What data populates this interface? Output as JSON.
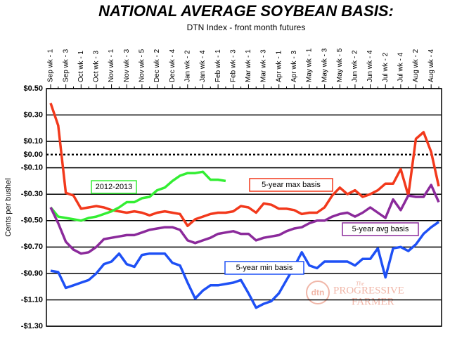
{
  "chart_data": {
    "type": "line",
    "title": "NATIONAL AVERAGE SOYBEAN BASIS:",
    "subtitle": "DTN Index - front month futures",
    "y_label": "Cents per bushel",
    "categories": [
      "Sep wk - 1",
      null,
      "Sep wk - 3",
      null,
      "Oct wk - 1",
      null,
      "Oct wk - 3",
      null,
      "Nov wk - 1",
      null,
      "Nov wk - 3",
      null,
      "Nov wk - 5",
      null,
      "Dec wk - 2",
      null,
      "Dec wk - 4",
      null,
      "Jan wk - 2",
      null,
      "Jan wk - 4",
      null,
      "Feb wk - 1",
      null,
      "Feb wk - 3",
      null,
      "Mar wk - 1",
      null,
      "Mar wk - 3",
      null,
      "Apr wk - 1",
      null,
      "Apr wk - 3",
      null,
      "May wk - 1",
      null,
      "May wk - 3",
      null,
      "May wk - 5",
      null,
      "Jun wk - 2",
      null,
      "Jun wk - 4",
      null,
      "Jul wk - 2",
      null,
      "Jul wk - 4",
      null,
      "Aug wk - 2",
      null,
      "Aug wk - 4",
      null
    ],
    "series": [
      {
        "name": "5-year max basis",
        "color": "#f2391c",
        "values": [
          0.39,
          0.22,
          -0.29,
          -0.31,
          -0.41,
          -0.4,
          -0.39,
          -0.4,
          -0.42,
          -0.43,
          -0.44,
          -0.43,
          -0.44,
          -0.46,
          -0.44,
          -0.43,
          -0.44,
          -0.45,
          -0.54,
          -0.49,
          -0.47,
          -0.45,
          -0.44,
          -0.44,
          -0.43,
          -0.39,
          -0.4,
          -0.44,
          -0.37,
          -0.38,
          -0.41,
          -0.41,
          -0.42,
          -0.45,
          -0.44,
          -0.44,
          -0.4,
          -0.31,
          -0.25,
          -0.3,
          -0.27,
          -0.32,
          -0.3,
          -0.27,
          -0.22,
          -0.22,
          -0.11,
          -0.31,
          0.12,
          0.17,
          0.02,
          -0.24
        ]
      },
      {
        "name": "2012-2013",
        "color": "#33ee33",
        "values": [
          -0.4,
          -0.47,
          -0.48,
          -0.49,
          -0.5,
          -0.48,
          -0.47,
          -0.45,
          -0.43,
          -0.4,
          -0.36,
          -0.36,
          -0.33,
          -0.32,
          -0.27,
          -0.25,
          -0.2,
          -0.16,
          -0.14,
          -0.14,
          -0.13,
          -0.19,
          -0.19,
          -0.2,
          null,
          null,
          null,
          null,
          null,
          null,
          null,
          null,
          null,
          null,
          null,
          null,
          null,
          null,
          null,
          null,
          null,
          null,
          null,
          null,
          null,
          null,
          null,
          null,
          null,
          null,
          null,
          null
        ]
      },
      {
        "name": "5-year avg basis",
        "color": "#8b2a9b",
        "values": [
          -0.4,
          -0.52,
          -0.66,
          -0.72,
          -0.75,
          -0.74,
          -0.7,
          -0.64,
          -0.63,
          -0.62,
          -0.61,
          -0.61,
          -0.59,
          -0.57,
          -0.56,
          -0.55,
          -0.55,
          -0.57,
          -0.65,
          -0.67,
          -0.65,
          -0.63,
          -0.6,
          -0.59,
          -0.58,
          -0.6,
          -0.6,
          -0.65,
          -0.63,
          -0.62,
          -0.61,
          -0.58,
          -0.56,
          -0.55,
          -0.52,
          -0.5,
          -0.5,
          -0.47,
          -0.45,
          -0.44,
          -0.47,
          -0.44,
          -0.4,
          -0.44,
          -0.48,
          -0.34,
          -0.42,
          -0.31,
          -0.32,
          -0.32,
          -0.23,
          -0.36
        ]
      },
      {
        "name": "5-year min basis",
        "color": "#1e50f5",
        "values": [
          -0.88,
          -0.89,
          -1.01,
          -0.99,
          -0.97,
          -0.95,
          -0.9,
          -0.83,
          -0.81,
          -0.75,
          -0.83,
          -0.85,
          -0.76,
          -0.75,
          -0.75,
          -0.75,
          -0.82,
          -0.84,
          -0.97,
          -1.09,
          -1.03,
          -0.99,
          -0.99,
          -0.98,
          -0.97,
          -0.95,
          -1.05,
          -1.16,
          -1.13,
          -1.11,
          -1.05,
          -0.95,
          -0.85,
          -0.74,
          -0.84,
          -0.86,
          -0.81,
          -0.81,
          -0.81,
          -0.81,
          -0.84,
          -0.79,
          -0.79,
          -0.71,
          -0.93,
          -0.71,
          -0.7,
          -0.73,
          -0.68,
          -0.6,
          -0.55,
          -0.51
        ]
      }
    ],
    "ylim": [
      -1.3,
      0.5
    ],
    "yticks": [
      {
        "value": 0.5,
        "label": "$0.50"
      },
      {
        "value": 0.3,
        "label": "$0.30"
      },
      {
        "value": 0.1,
        "label": "$0.10"
      },
      {
        "value": 0,
        "label": "$0.00"
      },
      {
        "value": -0.1,
        "label": "-$0.10"
      },
      {
        "value": -0.3,
        "label": "-$0.30"
      },
      {
        "value": -0.5,
        "label": "-$0.50"
      },
      {
        "value": -0.7,
        "label": "-$0.70"
      },
      {
        "value": -0.9,
        "label": "-$0.90"
      },
      {
        "value": -1.1,
        "label": "-$1.10"
      },
      {
        "value": -1.3,
        "label": "-$1.30"
      }
    ],
    "grid": true,
    "zero_line": "dotted",
    "logo": {
      "mark": "dtn",
      "small": "The",
      "name": "PROGRESSIVE",
      "name2": "FARMER"
    }
  }
}
